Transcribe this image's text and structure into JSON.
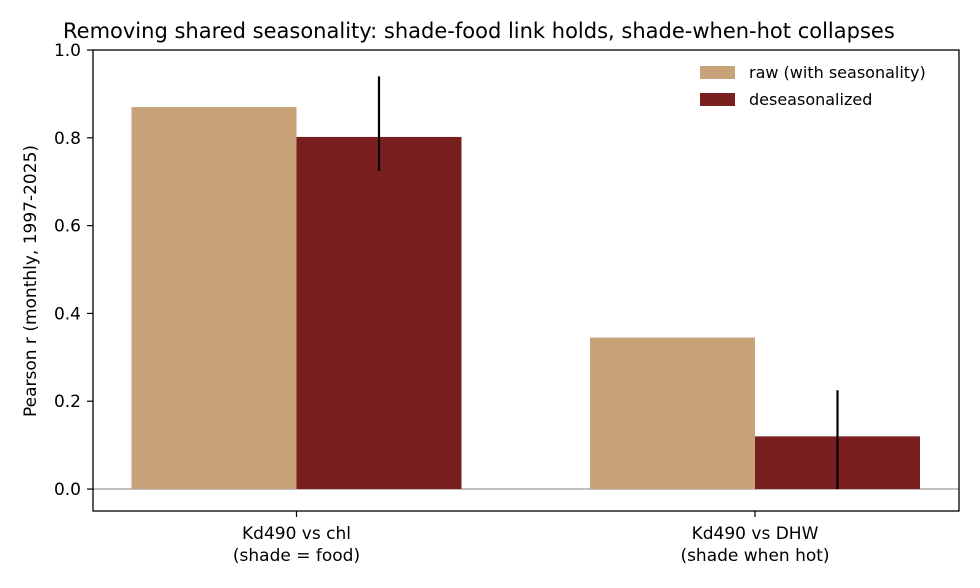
{
  "chart_data": {
    "type": "bar",
    "title": "Removing shared seasonality: shade-food link holds, shade-when-hot collapses",
    "ylabel": "Pearson r (monthly, 1997-2025)",
    "xlabel": "",
    "ylim": [
      -0.05,
      1.0
    ],
    "yticks": [
      "0.0",
      "0.2",
      "0.4",
      "0.6",
      "0.8",
      "1.0"
    ],
    "categories": [
      [
        "Kd490 vs chl",
        "(shade = food)"
      ],
      [
        "Kd490 vs DHW",
        "(shade when hot)"
      ]
    ],
    "series": [
      {
        "name": "raw (with seasonality)",
        "color": "#c8a278",
        "values": [
          0.87,
          0.345
        ]
      },
      {
        "name": "deseasonalized",
        "color": "#7a1f1f",
        "values": [
          0.802,
          0.12
        ],
        "error_low": [
          0.725,
          0.0
        ],
        "error_high": [
          0.94,
          0.225
        ]
      }
    ],
    "legend_position": "top-right",
    "grid": false,
    "zero_line": true
  }
}
